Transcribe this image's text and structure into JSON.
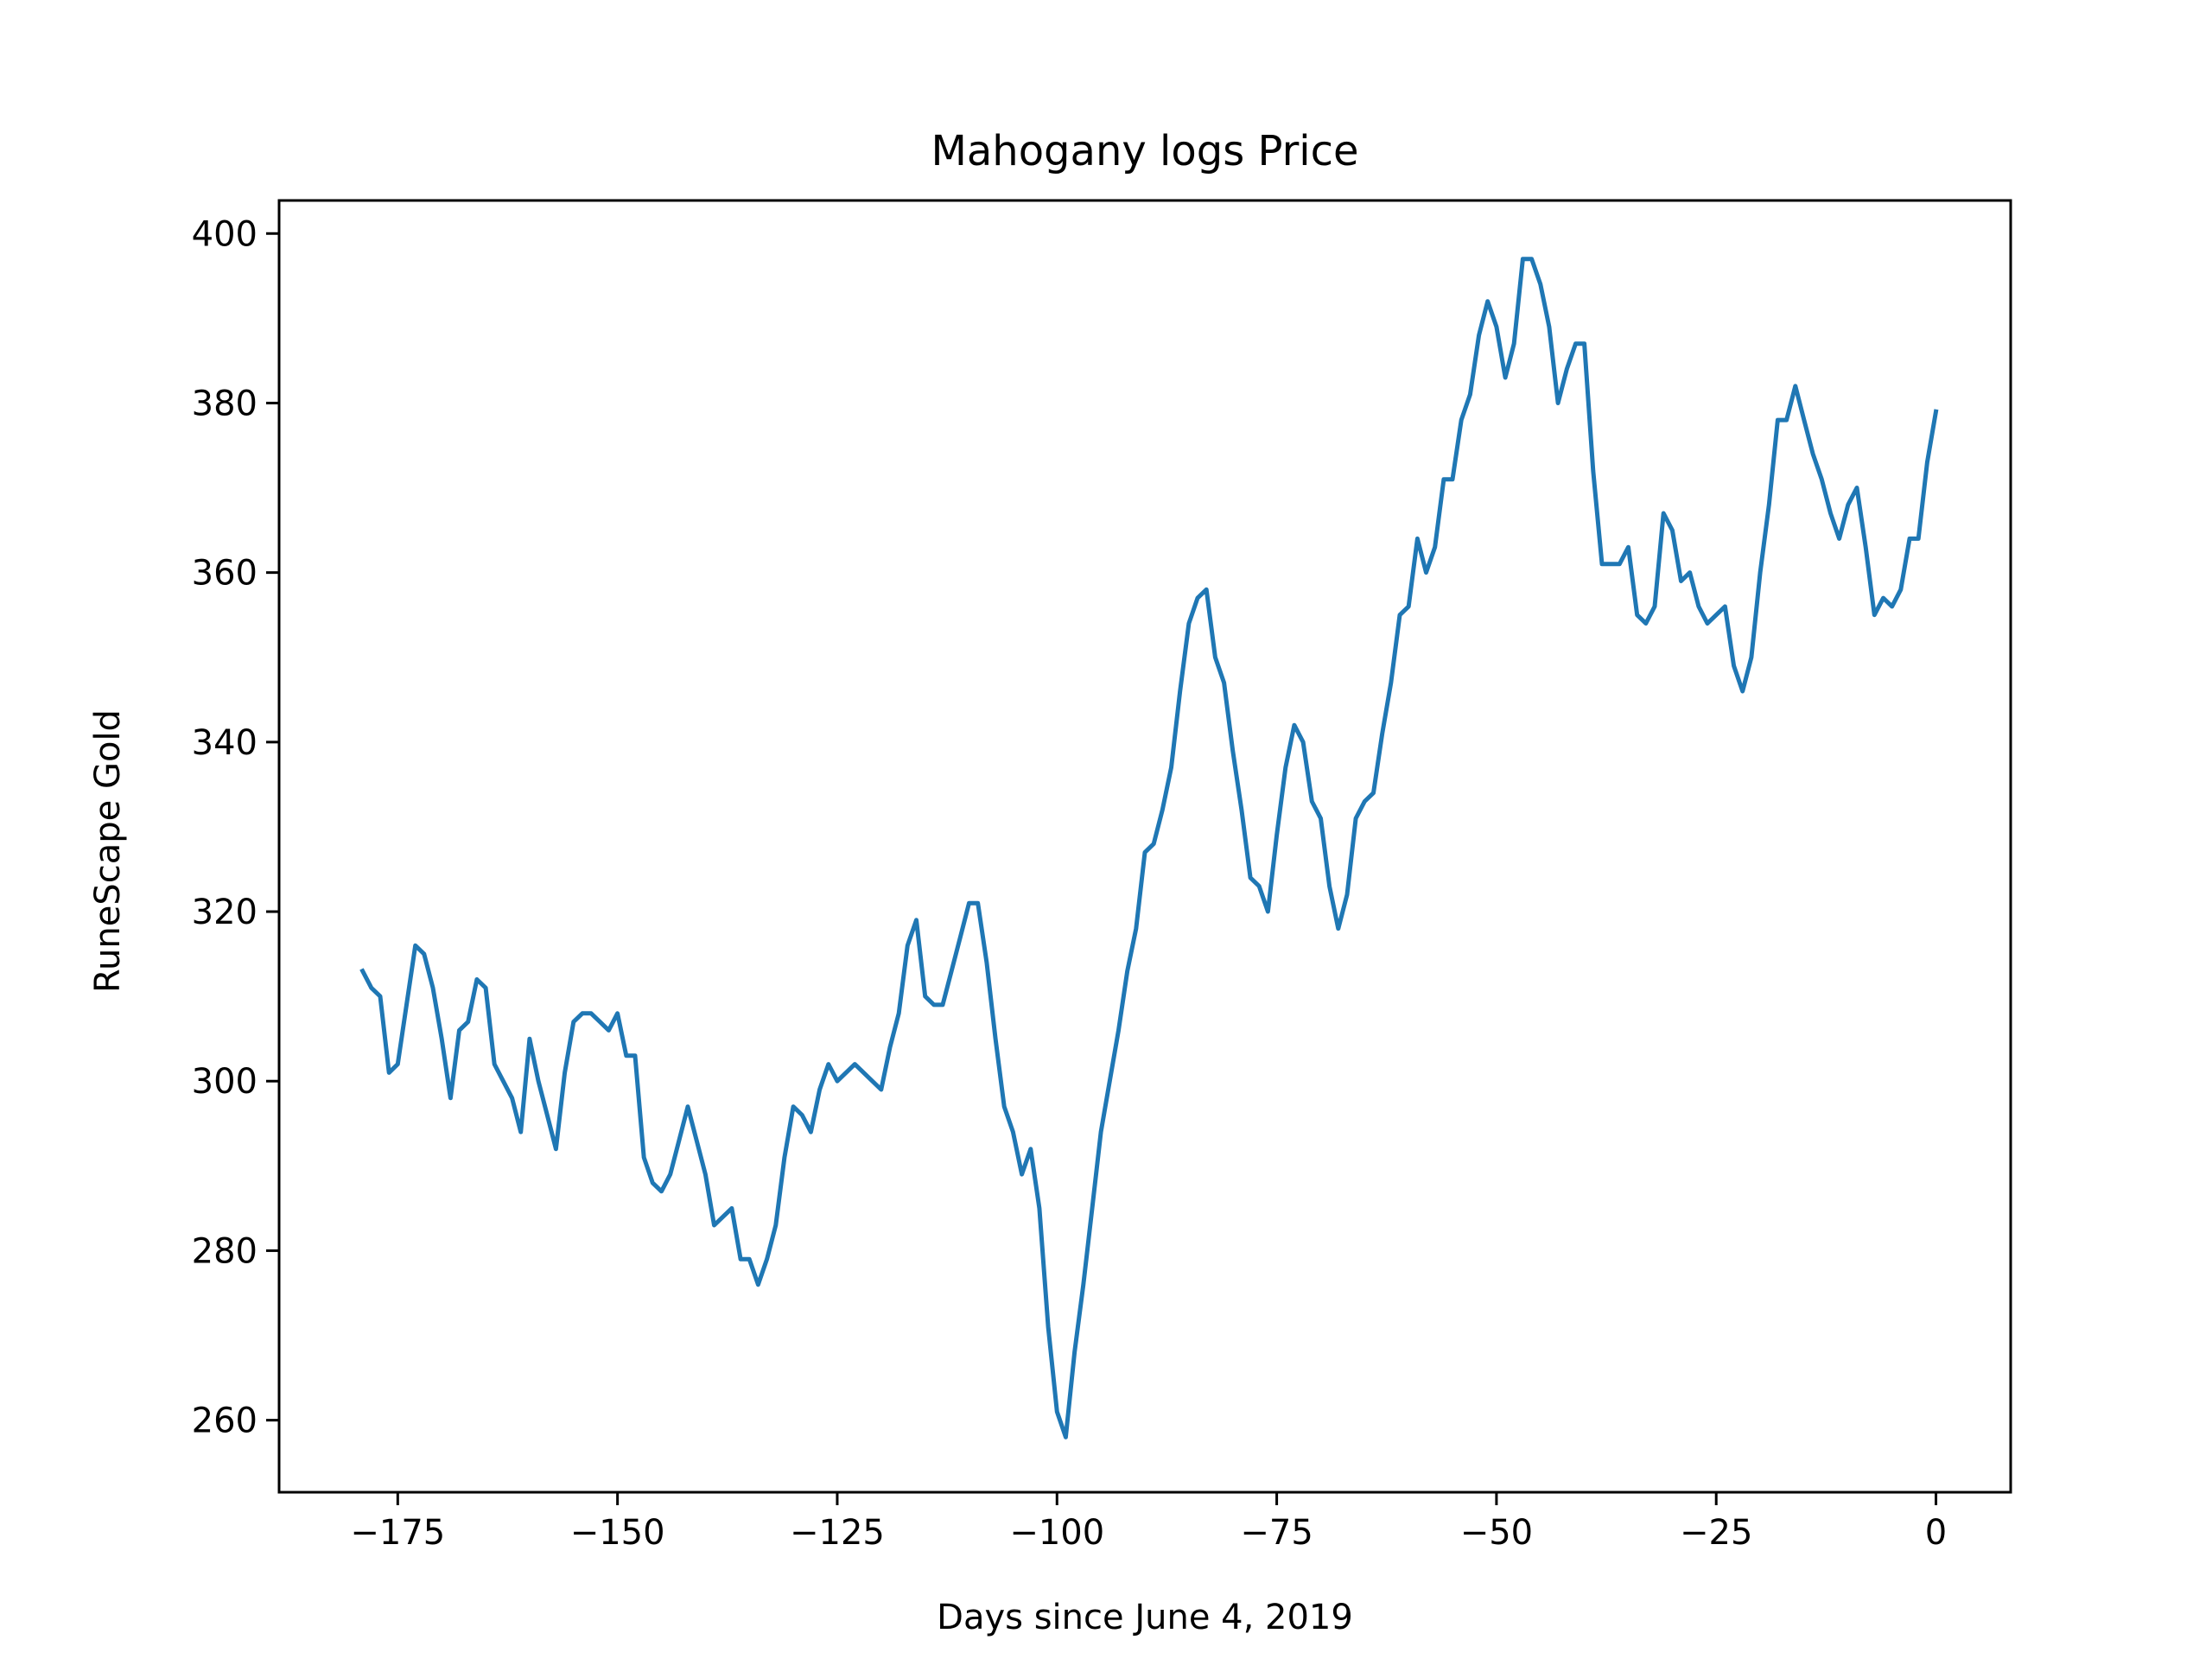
{
  "chart_data": {
    "type": "line",
    "title": "Mahogany logs Price",
    "xlabel": "Days since June 4, 2019",
    "ylabel": "RuneScape Gold",
    "xlim": [
      -188.5,
      8.5
    ],
    "ylim": [
      251.5,
      403.9
    ],
    "xticks": [
      -175,
      -150,
      -125,
      -100,
      -75,
      -50,
      -25,
      0
    ],
    "xtick_labels": [
      "−175",
      "−150",
      "−125",
      "−100",
      "−75",
      "−50",
      "−25",
      "0"
    ],
    "yticks": [
      260,
      280,
      300,
      320,
      340,
      360,
      380,
      400
    ],
    "ytick_labels": [
      "260",
      "280",
      "300",
      "320",
      "340",
      "360",
      "380",
      "400"
    ],
    "grid": false,
    "line_color": "#1f77b4",
    "series": [
      {
        "x": [
          -179,
          -178,
          -177,
          -176,
          -175,
          -174,
          -173,
          -172,
          -171,
          -170,
          -169,
          -168,
          -167,
          -166,
          -165,
          -164,
          -163,
          -162,
          -161,
          -160,
          -159,
          -158,
          -157,
          -156,
          -155,
          -154,
          -153,
          -152,
          -151,
          -150,
          -149,
          -148,
          -147,
          -146,
          -145,
          -144,
          -143,
          -142,
          -141,
          -140,
          -139,
          -138,
          -137,
          -136,
          -135,
          -134,
          -133,
          -132,
          -131,
          -130,
          -129,
          -128,
          -127,
          -126,
          -125,
          -124,
          -123,
          -122,
          -121,
          -120,
          -119,
          -118,
          -117,
          -116,
          -115,
          -114,
          -113,
          -112,
          -111,
          -110,
          -109,
          -108,
          -107,
          -106,
          -105,
          -104,
          -103,
          -102,
          -101,
          -100,
          -99,
          -98,
          -97,
          -96,
          -95,
          -94,
          -93,
          -92,
          -91,
          -90,
          -89,
          -88,
          -87,
          -86,
          -85,
          -84,
          -83,
          -82,
          -81,
          -80,
          -79,
          -78,
          -77,
          -76,
          -75,
          -74,
          -73,
          -72,
          -71,
          -70,
          -69,
          -68,
          -67,
          -66,
          -65,
          -64,
          -63,
          -62,
          -61,
          -60,
          -59,
          -58,
          -57,
          -56,
          -55,
          -54,
          -53,
          -52,
          -51,
          -50,
          -49,
          -48,
          -47,
          -46,
          -45,
          -44,
          -43,
          -42,
          -41,
          -40,
          -39,
          -38,
          -37,
          -36,
          -35,
          -34,
          -33,
          -32,
          -31,
          -30,
          -29,
          -28,
          -27,
          -26,
          -25,
          -24,
          -23,
          -22,
          -21,
          -20,
          -19,
          -18,
          -17,
          -16,
          -15,
          -14,
          -13,
          -12,
          -11,
          -10,
          -9,
          -8,
          -7,
          -6,
          -5,
          -4,
          -3,
          -2,
          -1,
          0
        ],
        "y": [
          313,
          311,
          310,
          301,
          302,
          309,
          316,
          315,
          311,
          305,
          298,
          306,
          307,
          312,
          311,
          302,
          300,
          298,
          294,
          305,
          300,
          296,
          292,
          301,
          307,
          308,
          308,
          307,
          306,
          308,
          303,
          303,
          291,
          288,
          287,
          289,
          293,
          297,
          293,
          289,
          283,
          284,
          285,
          279,
          279,
          276,
          279,
          283,
          291,
          297,
          296,
          294,
          299,
          302,
          300,
          301,
          302,
          301,
          300,
          299,
          304,
          308,
          316,
          319,
          310,
          309,
          309,
          313,
          317,
          321,
          321,
          314,
          305,
          297,
          294,
          289,
          292,
          285,
          271,
          261,
          258,
          268,
          276,
          285,
          294,
          300,
          306,
          313,
          318,
          327,
          328,
          332,
          337,
          346,
          354,
          357,
          358,
          350,
          347,
          339,
          332,
          324,
          323,
          320,
          329,
          337,
          342,
          340,
          333,
          331,
          323,
          318,
          322,
          331,
          333,
          334,
          341,
          347,
          355,
          356,
          364,
          360,
          363,
          371,
          371,
          378,
          381,
          388,
          392,
          389,
          383,
          387,
          397,
          397,
          394,
          389,
          380,
          384,
          387,
          387,
          372,
          361,
          361,
          361,
          363,
          355,
          354,
          356,
          367,
          365,
          359,
          360,
          356,
          354,
          355,
          356,
          349,
          346,
          350,
          360,
          368,
          378,
          378,
          382,
          378,
          374,
          371,
          367,
          364,
          368,
          370,
          363,
          355,
          357,
          356,
          358,
          364,
          364,
          373,
          379
        ]
      }
    ]
  }
}
